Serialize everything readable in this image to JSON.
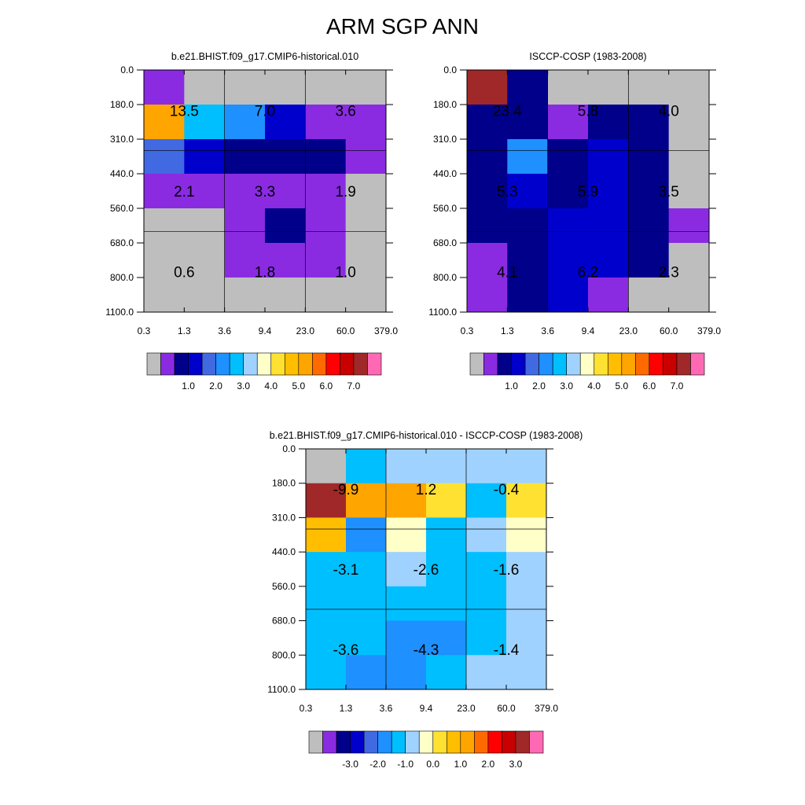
{
  "page": {
    "title": "ARM SGP ANN"
  },
  "chart_data": [
    {
      "type": "heatmap",
      "title": "b.e21.BHIST.f09_g17.CMIP6-historical.010",
      "x_tick_labels": [
        "0.3",
        "1.3",
        "3.6",
        "9.4",
        "23.0",
        "60.0",
        "379.0"
      ],
      "y_tick_labels": [
        "0.0",
        "180.0",
        "310.0",
        "440.0",
        "560.0",
        "680.0",
        "800.0",
        "1100.0"
      ],
      "color_index_grid": [
        [
          1,
          0,
          0,
          0,
          0,
          0
        ],
        [
          11,
          6,
          5,
          3,
          1,
          1
        ],
        [
          4,
          3,
          2,
          2,
          2,
          1
        ],
        [
          1,
          1,
          1,
          1,
          1,
          0
        ],
        [
          0,
          0,
          1,
          2,
          1,
          0
        ],
        [
          0,
          0,
          1,
          1,
          1,
          0
        ],
        [
          0,
          0,
          0,
          0,
          0,
          0
        ]
      ],
      "block_labels": [
        {
          "row": 0,
          "col": 0,
          "text": "13.5"
        },
        {
          "row": 0,
          "col": 1,
          "text": "7.0"
        },
        {
          "row": 0,
          "col": 2,
          "text": "3.6"
        },
        {
          "row": 1,
          "col": 0,
          "text": "2.1"
        },
        {
          "row": 1,
          "col": 1,
          "text": "3.3"
        },
        {
          "row": 1,
          "col": 2,
          "text": "1.9"
        },
        {
          "row": 2,
          "col": 0,
          "text": "0.6"
        },
        {
          "row": 2,
          "col": 1,
          "text": "1.8"
        },
        {
          "row": 2,
          "col": 2,
          "text": "1.0"
        }
      ],
      "palette": "pos",
      "colorbar_labels": [
        "1.0",
        "2.0",
        "3.0",
        "4.0",
        "5.0",
        "6.0",
        "7.0"
      ]
    },
    {
      "type": "heatmap",
      "title": "ISCCP-COSP (1983-2008)",
      "x_tick_labels": [
        "0.3",
        "1.3",
        "3.6",
        "9.4",
        "23.0",
        "60.0",
        "379.0"
      ],
      "y_tick_labels": [
        "0.0",
        "180.0",
        "310.0",
        "440.0",
        "560.0",
        "680.0",
        "800.0",
        "1100.0"
      ],
      "color_index_grid": [
        [
          15,
          2,
          0,
          0,
          0,
          0
        ],
        [
          2,
          2,
          1,
          2,
          2,
          0
        ],
        [
          2,
          5,
          2,
          3,
          2,
          0
        ],
        [
          2,
          3,
          2,
          3,
          2,
          0
        ],
        [
          2,
          2,
          3,
          3,
          2,
          1
        ],
        [
          1,
          2,
          3,
          3,
          2,
          0
        ],
        [
          1,
          2,
          3,
          1,
          0,
          0
        ]
      ],
      "block_labels": [
        {
          "row": 0,
          "col": 0,
          "text": "23.4"
        },
        {
          "row": 0,
          "col": 1,
          "text": "5.8"
        },
        {
          "row": 0,
          "col": 2,
          "text": "4.0"
        },
        {
          "row": 1,
          "col": 0,
          "text": "5.3"
        },
        {
          "row": 1,
          "col": 1,
          "text": "5.9"
        },
        {
          "row": 1,
          "col": 2,
          "text": "3.5"
        },
        {
          "row": 2,
          "col": 0,
          "text": "4.1"
        },
        {
          "row": 2,
          "col": 1,
          "text": "6.2"
        },
        {
          "row": 2,
          "col": 2,
          "text": "2.3"
        }
      ],
      "palette": "pos",
      "colorbar_labels": [
        "1.0",
        "2.0",
        "3.0",
        "4.0",
        "5.0",
        "6.0",
        "7.0"
      ]
    },
    {
      "type": "heatmap",
      "title": "b.e21.BHIST.f09_g17.CMIP6-historical.010 - ISCCP-COSP (1983-2008)",
      "x_tick_labels": [
        "0.3",
        "1.3",
        "3.6",
        "9.4",
        "23.0",
        "60.0",
        "379.0"
      ],
      "y_tick_labels": [
        "0.0",
        "180.0",
        "310.0",
        "440.0",
        "560.0",
        "680.0",
        "800.0",
        "1100.0"
      ],
      "color_index_grid": [
        [
          0,
          6,
          7,
          7,
          7,
          7
        ],
        [
          15,
          11,
          11,
          9,
          6,
          9
        ],
        [
          10,
          5,
          8,
          6,
          7,
          8
        ],
        [
          6,
          6,
          7,
          6,
          6,
          7
        ],
        [
          6,
          6,
          6,
          6,
          6,
          7
        ],
        [
          6,
          6,
          5,
          5,
          6,
          7
        ],
        [
          6,
          5,
          5,
          6,
          7,
          7
        ]
      ],
      "block_labels": [
        {
          "row": 0,
          "col": 0,
          "text": "-9.9"
        },
        {
          "row": 0,
          "col": 1,
          "text": "1.2"
        },
        {
          "row": 0,
          "col": 2,
          "text": "-0.4"
        },
        {
          "row": 1,
          "col": 0,
          "text": "-3.1"
        },
        {
          "row": 1,
          "col": 1,
          "text": "-2.6"
        },
        {
          "row": 1,
          "col": 2,
          "text": "-1.6"
        },
        {
          "row": 2,
          "col": 0,
          "text": "-3.6"
        },
        {
          "row": 2,
          "col": 1,
          "text": "-4.3"
        },
        {
          "row": 2,
          "col": 2,
          "text": "-1.4"
        }
      ],
      "palette": "diff",
      "colorbar_labels": [
        "-3.0",
        "-2.0",
        "-1.0",
        "0.0",
        "1.0",
        "2.0",
        "3.0"
      ]
    }
  ],
  "palettes": {
    "pos": [
      "#bebebe",
      "#8a2be2",
      "#00008b",
      "#0000cd",
      "#4169e1",
      "#1e90ff",
      "#00bfff",
      "#a0d2ff",
      "#ffffc8",
      "#ffe132",
      "#ffbf00",
      "#ffa500",
      "#ff6a00",
      "#ff0000",
      "#c80000",
      "#a02828",
      "#ff69b4"
    ],
    "diff": [
      "#bebebe",
      "#8a2be2",
      "#00008b",
      "#0000cd",
      "#4169e1",
      "#1e90ff",
      "#00bfff",
      "#a0d2ff",
      "#ffffc8",
      "#ffe132",
      "#ffbf00",
      "#ffa500",
      "#ff6a00",
      "#ff0000",
      "#c80000",
      "#a02828",
      "#ff69b4"
    ]
  }
}
